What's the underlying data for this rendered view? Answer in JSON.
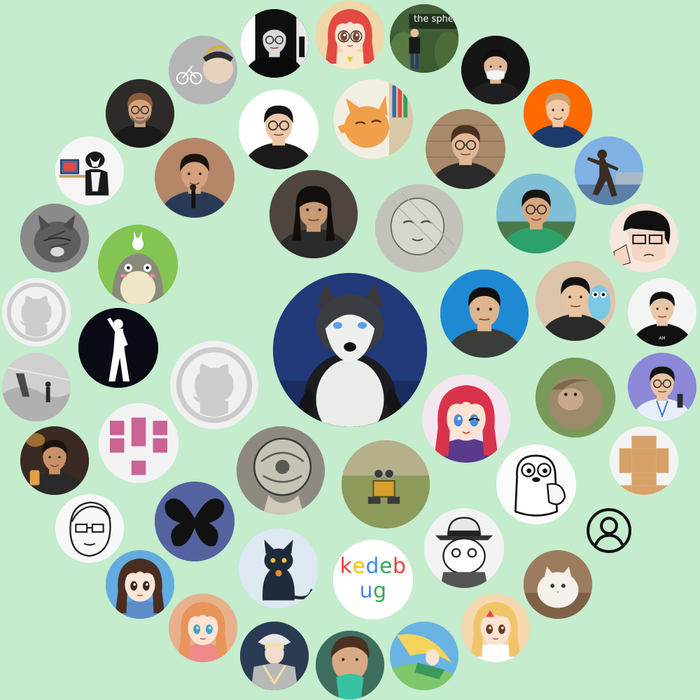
{
  "image_texts": {
    "kedebug_letters": [
      "k",
      "e",
      "d",
      "e",
      "b",
      "u",
      "g"
    ],
    "kedebug_colors": [
      "#e94335",
      "#fbbc05",
      "#4285f4",
      "#34a853",
      "#e94335",
      "#4285f4",
      "#34a853"
    ],
    "sphere_sign": "the sphe"
  },
  "colors": {
    "background": "#c4eccd",
    "center_avatar_bg": "#2b3e88",
    "github_placeholder": "#cfcfcf",
    "identicon_pink": "#c96493",
    "identicon_tan": "#d6a26a"
  },
  "avatars": [
    {
      "id": 1,
      "kind": "photo-penguin-husky",
      "bg": "#1f3a7a",
      "size": "large"
    },
    {
      "id": 2,
      "kind": "photo-bike-sketch",
      "bg": "#a8a8a8"
    },
    {
      "id": 3,
      "kind": "photo-bw-man",
      "bg": "#202020"
    },
    {
      "id": 4,
      "kind": "anime-redhair-glasses",
      "bg": "#d8b06a"
    },
    {
      "id": 5,
      "kind": "photo-the-sphere",
      "bg": "#3d5a2e"
    },
    {
      "id": 6,
      "kind": "photo-man-mask",
      "bg": "#1d1d1d"
    },
    {
      "id": 7,
      "kind": "photo-man-orange-bg",
      "bg": "#ff6a00"
    },
    {
      "id": 8,
      "kind": "photo-statue",
      "bg": "#6c9fd9"
    },
    {
      "id": 9,
      "kind": "manga-glasses-man",
      "bg": "#f2d9cf"
    },
    {
      "id": 10,
      "kind": "photo-man-black-shirt",
      "bg": "#f2f2f2"
    },
    {
      "id": 11,
      "kind": "photo-speaker-lanyard",
      "bg": "#8a85d6"
    },
    {
      "id": 12,
      "kind": "identicon-tan",
      "bg": "#f3f3f3"
    },
    {
      "id": 13,
      "kind": "user-outline-icon",
      "bg": "transparent"
    },
    {
      "id": 14,
      "kind": "photo-white-cat",
      "bg": "#a08060"
    },
    {
      "id": 15,
      "kind": "anime-blonde-girl",
      "bg": "#f4cfa0"
    },
    {
      "id": 16,
      "kind": "anime-flying-girl",
      "bg": "#5ba5d6"
    },
    {
      "id": 17,
      "kind": "photo-man-green-cup",
      "bg": "#4a7d6e"
    },
    {
      "id": 18,
      "kind": "anime-armored-girl",
      "bg": "#2d3c52"
    },
    {
      "id": 19,
      "kind": "anime-ginger-girl",
      "bg": "#e0a276"
    },
    {
      "id": 20,
      "kind": "anime-boy-blue",
      "bg": "#5aa5d8"
    },
    {
      "id": 21,
      "kind": "sketch-glasses-face",
      "bg": "#f7f7f7"
    },
    {
      "id": 22,
      "kind": "photo-bar-man",
      "bg": "#3a2c24"
    },
    {
      "id": 23,
      "kind": "photo-snow-painting",
      "bg": "#c8c8c8"
    },
    {
      "id": 24,
      "kind": "github-octocat",
      "bg": "#f0f0f0"
    },
    {
      "id": 25,
      "kind": "photo-cat-bw",
      "bg": "#6a6a6a"
    },
    {
      "id": 26,
      "kind": "photo-dog-computer",
      "bg": "#f3f3f3"
    },
    {
      "id": 27,
      "kind": "photo-bald-glasses-man",
      "bg": "#2b2b2b"
    },
    {
      "id": 28,
      "kind": "photo-man-microphone",
      "bg": "#b68466"
    },
    {
      "id": 29,
      "kind": "photo-man-glasses-white",
      "bg": "#ffffff"
    },
    {
      "id": 30,
      "kind": "photo-cat-bookshelf",
      "bg": "#f0a050"
    },
    {
      "id": 31,
      "kind": "photo-man-glasses-brick",
      "bg": "#9c7a5a"
    },
    {
      "id": 32,
      "kind": "photo-man-smile-green",
      "bg": "#67b4cf"
    },
    {
      "id": 33,
      "kind": "photo-man-gopher-plush",
      "bg": "#d8c0a6"
    },
    {
      "id": 34,
      "kind": "photo-man-blue-bg",
      "bg": "#1e88d0"
    },
    {
      "id": 35,
      "kind": "photo-monkey",
      "bg": "#6a8a4a"
    },
    {
      "id": 36,
      "kind": "anime-red-hair-wink",
      "bg": "#f3e8ee"
    },
    {
      "id": 37,
      "kind": "gopher-sketch",
      "bg": "#fafafa"
    },
    {
      "id": 38,
      "kind": "manga-hat-character",
      "bg": "#f0f0f0"
    },
    {
      "id": 39,
      "kind": "kedebug-text",
      "bg": "#ffffff"
    },
    {
      "id": 40,
      "kind": "cartoon-black-cat",
      "bg": "#d8e4f0"
    },
    {
      "id": 41,
      "kind": "photo-walle",
      "bg": "#7a8a4e"
    },
    {
      "id": 42,
      "kind": "photo-escher-sphere",
      "bg": "#9a9488"
    },
    {
      "id": 43,
      "kind": "butterfly-icon",
      "bg": "#4a5a9a"
    },
    {
      "id": 44,
      "kind": "identicon-pink",
      "bg": "#f3f3f3"
    },
    {
      "id": 45,
      "kind": "github-octocat",
      "bg": "#f0f0f0"
    },
    {
      "id": 46,
      "kind": "silhouette-figure",
      "bg": "#0a0a14"
    },
    {
      "id": 47,
      "kind": "totoro-cartoon",
      "bg": "#7bc050"
    },
    {
      "id": 48,
      "kind": "photo-long-hair-man",
      "bg": "#50463c"
    },
    {
      "id": 49,
      "kind": "sketch-baby-face",
      "bg": "#bdbdb5"
    }
  ]
}
